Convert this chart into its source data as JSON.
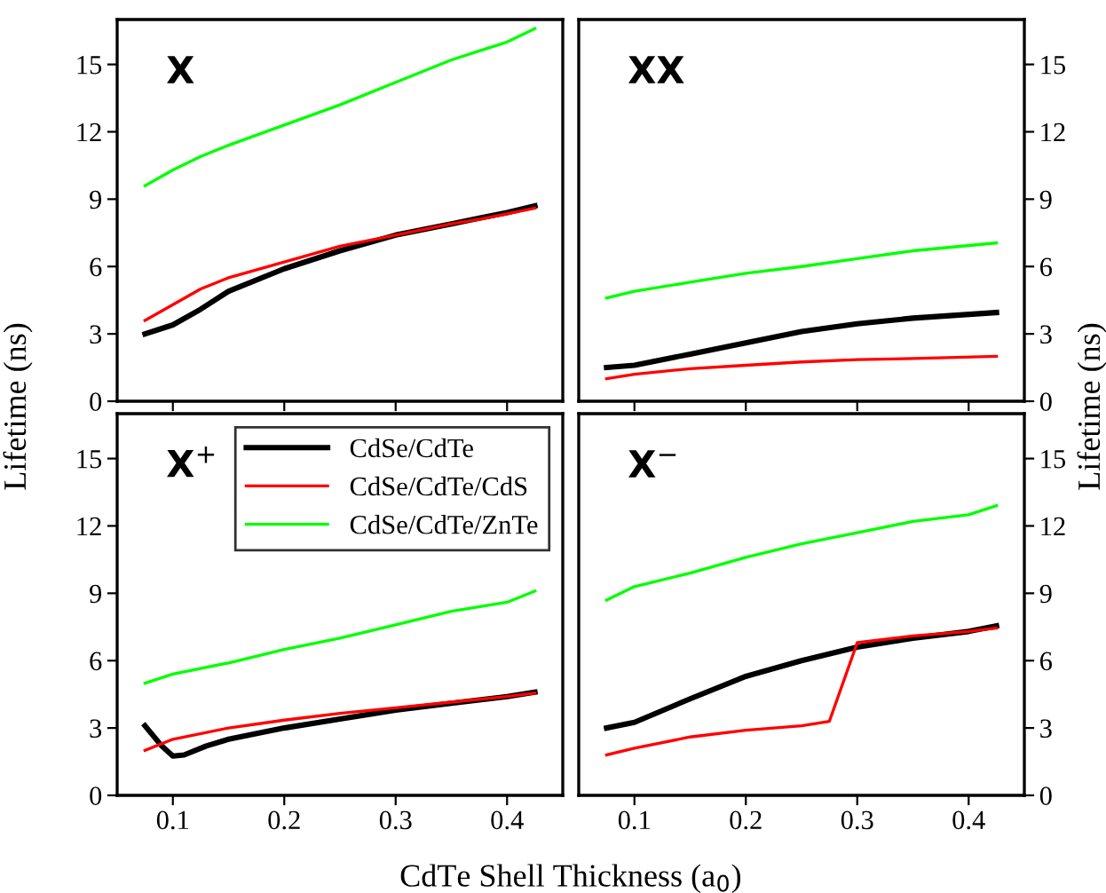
{
  "chart_data": [
    {
      "type": "line",
      "ylabel": "Lifetime (ns)",
      "annotations": [
        "X"
      ],
      "xlim": [
        0.05,
        0.45
      ],
      "xticks": [
        {
          "value": 0.1,
          "label": null
        },
        {
          "value": 0.2,
          "label": null
        },
        {
          "value": 0.3,
          "label": null
        },
        {
          "value": 0.4,
          "label": null
        }
      ],
      "ylim": [
        0,
        17
      ],
      "yticks": [
        0,
        3,
        6,
        9,
        12,
        15
      ],
      "tick_labels": "y",
      "grid": false,
      "legend": false,
      "x": [
        0.075,
        0.1,
        0.125,
        0.15,
        0.2,
        0.25,
        0.3,
        0.35,
        0.375,
        0.4,
        0.425
      ],
      "series": [
        {
          "color": "#000000",
          "values": [
            3.0,
            3.4,
            4.1,
            4.9,
            5.9,
            6.7,
            7.4,
            7.9,
            8.15,
            8.4,
            8.7
          ]
        },
        {
          "color": "#ff0000",
          "values": [
            3.6,
            4.3,
            5.0,
            5.5,
            6.2,
            6.9,
            7.4,
            7.9,
            8.1,
            8.35,
            8.6
          ]
        },
        {
          "color": "#00ff00",
          "values": [
            9.6,
            10.3,
            10.9,
            11.4,
            12.3,
            13.2,
            14.2,
            15.2,
            15.6,
            16.0,
            16.6
          ]
        }
      ]
    },
    {
      "type": "line",
      "ylabel": "Lifetime (ns)",
      "annotations": [
        "XX"
      ],
      "xlim": [
        0.05,
        0.45
      ],
      "xticks": [
        {
          "value": 0.1,
          "label": null
        },
        {
          "value": 0.2,
          "label": null
        },
        {
          "value": 0.3,
          "label": null
        },
        {
          "value": 0.4,
          "label": null
        }
      ],
      "ylim": [
        0,
        17
      ],
      "yticks": [
        0,
        3,
        6,
        9,
        12,
        15
      ],
      "tick_labels": "y",
      "grid": false,
      "legend": false,
      "x": [
        0.075,
        0.1,
        0.15,
        0.2,
        0.25,
        0.3,
        0.35,
        0.425
      ],
      "series": [
        {
          "color": "#000000",
          "values": [
            1.5,
            1.6,
            2.1,
            2.6,
            3.1,
            3.45,
            3.7,
            3.95
          ]
        },
        {
          "color": "#ff0000",
          "values": [
            1.0,
            1.2,
            1.45,
            1.6,
            1.75,
            1.85,
            1.9,
            2.0
          ]
        },
        {
          "color": "#00ff00",
          "values": [
            4.6,
            4.9,
            5.3,
            5.7,
            6.0,
            6.35,
            6.7,
            7.05
          ]
        }
      ]
    },
    {
      "type": "line",
      "xlabel": "CdTe Shell Thickness (a$_{0}$)",
      "annotations": [
        "X$^{+}$"
      ],
      "xlim": [
        0.05,
        0.45
      ],
      "xticks": [
        0.1,
        0.2,
        0.3,
        0.4
      ],
      "ylim": [
        0,
        17
      ],
      "yticks": [
        0,
        3,
        6,
        9,
        12,
        15
      ],
      "grid": false,
      "legend": "top right",
      "series": [
        {
          "name": "CdSe/CdTe",
          "color": "#000000",
          "x": [
            0.075,
            0.09,
            0.1,
            0.11,
            0.13,
            0.15,
            0.2,
            0.25,
            0.3,
            0.35,
            0.4,
            0.425
          ],
          "values": [
            3.1,
            2.2,
            1.75,
            1.8,
            2.2,
            2.5,
            3.0,
            3.4,
            3.8,
            4.1,
            4.4,
            4.6
          ]
        },
        {
          "name": "CdSe/CdTe/CdS",
          "color": "#ff0000",
          "x": [
            0.075,
            0.1,
            0.15,
            0.2,
            0.25,
            0.3,
            0.35,
            0.4,
            0.425
          ],
          "values": [
            2.0,
            2.5,
            3.0,
            3.35,
            3.65,
            3.9,
            4.15,
            4.4,
            4.55
          ]
        },
        {
          "name": "CdSe/CdTe/ZnTe",
          "color": "#00ff00",
          "x": [
            0.075,
            0.1,
            0.15,
            0.2,
            0.25,
            0.3,
            0.35,
            0.4,
            0.425
          ],
          "values": [
            5.0,
            5.4,
            5.9,
            6.5,
            7.0,
            7.6,
            8.2,
            8.6,
            9.1
          ]
        }
      ]
    },
    {
      "type": "line",
      "annotations": [
        "X$^{−}$"
      ],
      "xlim": [
        0.05,
        0.45
      ],
      "xticks": [
        0.1,
        0.2,
        0.3,
        0.4
      ],
      "ylim": [
        0,
        17
      ],
      "yticks": [
        0,
        3,
        6,
        9,
        12,
        15
      ],
      "grid": false,
      "legend": false,
      "series": [
        {
          "color": "#000000",
          "x": [
            0.075,
            0.1,
            0.15,
            0.2,
            0.25,
            0.3,
            0.35,
            0.4,
            0.425
          ],
          "values": [
            3.0,
            3.25,
            4.3,
            5.3,
            6.0,
            6.6,
            7.0,
            7.3,
            7.55
          ]
        },
        {
          "color": "#ff0000",
          "x": [
            0.075,
            0.1,
            0.15,
            0.2,
            0.25,
            0.275,
            0.3,
            0.35,
            0.4,
            0.425
          ],
          "values": [
            1.8,
            2.1,
            2.6,
            2.9,
            3.1,
            3.3,
            6.8,
            7.1,
            7.3,
            7.45
          ]
        },
        {
          "color": "#00ff00",
          "x": [
            0.075,
            0.1,
            0.15,
            0.2,
            0.25,
            0.3,
            0.35,
            0.4,
            0.425
          ],
          "values": [
            8.7,
            9.3,
            9.9,
            10.6,
            11.2,
            11.7,
            12.2,
            12.5,
            12.9
          ]
        }
      ]
    }
  ]
}
